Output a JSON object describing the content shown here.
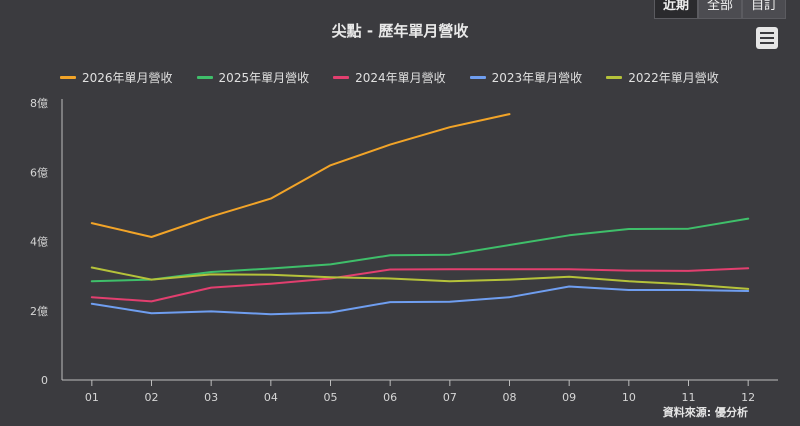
{
  "tabs": [
    {
      "label": "近期",
      "active": true
    },
    {
      "label": "全部",
      "active": false
    },
    {
      "label": "自訂",
      "active": false
    }
  ],
  "menu_icon": "hamburger-menu-icon",
  "source": "資料來源: 優分析",
  "chart_data": {
    "type": "line",
    "title": "尖點 - 歷年單月營收",
    "xlabel": "",
    "ylabel": "",
    "categories": [
      "01",
      "02",
      "03",
      "04",
      "05",
      "06",
      "07",
      "08",
      "09",
      "10",
      "11",
      "12"
    ],
    "y_ticks": [
      {
        "value": 0,
        "label": "0"
      },
      {
        "value": 2,
        "label": "2億"
      },
      {
        "value": 4,
        "label": "4億"
      },
      {
        "value": 6,
        "label": "6億"
      },
      {
        "value": 8,
        "label": "8億"
      }
    ],
    "ylim": [
      0,
      8
    ],
    "grid": false,
    "legend_position": "top",
    "series": [
      {
        "name": "2026年單月營收",
        "color": "#f2a428",
        "values": [
          4.53,
          4.13,
          4.72,
          5.24,
          6.2,
          6.8,
          7.3,
          7.68,
          null,
          null,
          null,
          null
        ]
      },
      {
        "name": "2025年單月營收",
        "color": "#3fbf6a",
        "values": [
          2.85,
          2.9,
          3.12,
          3.22,
          3.34,
          3.6,
          3.62,
          3.9,
          4.18,
          4.36,
          4.37,
          4.66
        ]
      },
      {
        "name": "2024年單月營收",
        "color": "#e23f6f",
        "values": [
          2.39,
          2.27,
          2.67,
          2.78,
          2.93,
          3.19,
          3.2,
          3.2,
          3.2,
          3.16,
          3.15,
          3.23
        ]
      },
      {
        "name": "2023年單月營收",
        "color": "#6f9ef0",
        "values": [
          2.2,
          1.93,
          1.98,
          1.9,
          1.95,
          2.25,
          2.26,
          2.39,
          2.7,
          2.6,
          2.6,
          2.57
        ]
      },
      {
        "name": "2022年單月營收",
        "color": "#b5c23a",
        "values": [
          3.25,
          2.9,
          3.05,
          3.04,
          2.97,
          2.93,
          2.85,
          2.9,
          2.98,
          2.85,
          2.76,
          2.63
        ]
      }
    ]
  }
}
